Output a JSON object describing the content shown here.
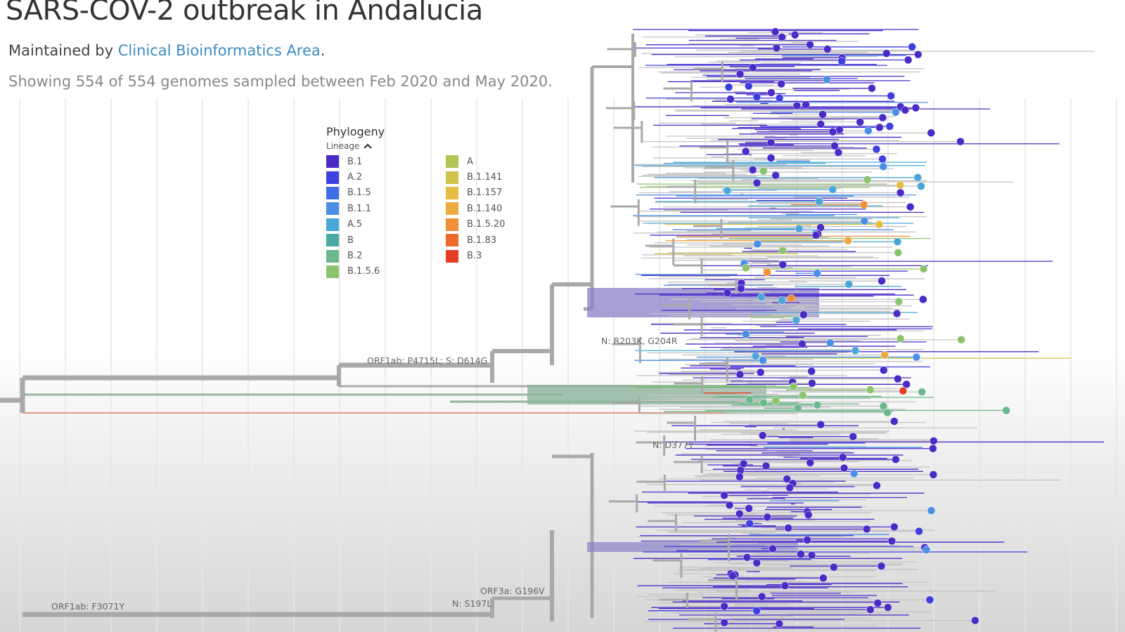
{
  "header": {
    "title": "SARS-COV-2 outbreak in Andalucia",
    "maintained_prefix": "Maintained by ",
    "maintainer_link": "Clinical Bioinformatics Area",
    "maintained_suffix": ".",
    "showing": "Showing 554 of 554 genomes sampled between Feb 2020 and May 2020."
  },
  "legend": {
    "title": "Phylogeny",
    "subtitle": "Lineage",
    "toggle_icon": "chevron-up-icon",
    "items": [
      {
        "label": "B.1",
        "color": "#4b2bc8"
      },
      {
        "label": "A.2",
        "color": "#3d3fe0"
      },
      {
        "label": "B.1.5",
        "color": "#3d6ee8"
      },
      {
        "label": "B.1.1",
        "color": "#4a8ee6"
      },
      {
        "label": "A.5",
        "color": "#4aa6d8"
      },
      {
        "label": "B",
        "color": "#4aaaa4"
      },
      {
        "label": "B.2",
        "color": "#6bb88a"
      },
      {
        "label": "B.1.5.6",
        "color": "#8cc46e"
      },
      {
        "label": "A",
        "color": "#b2c452"
      },
      {
        "label": "B.1.141",
        "color": "#cfc44a"
      },
      {
        "label": "B.1.157",
        "color": "#e6be44"
      },
      {
        "label": "B.1.140",
        "color": "#eeaa3e"
      },
      {
        "label": "B.1.5.20",
        "color": "#f08f36"
      },
      {
        "label": "B.1.83",
        "color": "#ee6a2c"
      },
      {
        "label": "B.3",
        "color": "#e63e24"
      }
    ]
  },
  "mutations": {
    "orf1ab_p4715l": "ORF1ab: P4715L; S: D614G",
    "n_r203k": "N: R203K, G204R",
    "n_d377y": "N: D377Y",
    "orf3a_g196v": "ORF3a: G196V",
    "n_s197l": "N: S197L",
    "orf1ab_f3071y": "ORF1ab: F3071Y"
  },
  "colors": {
    "branch": "#a9a9a9",
    "grid": "#e6e6e6",
    "link": "#3b8bbf"
  }
}
